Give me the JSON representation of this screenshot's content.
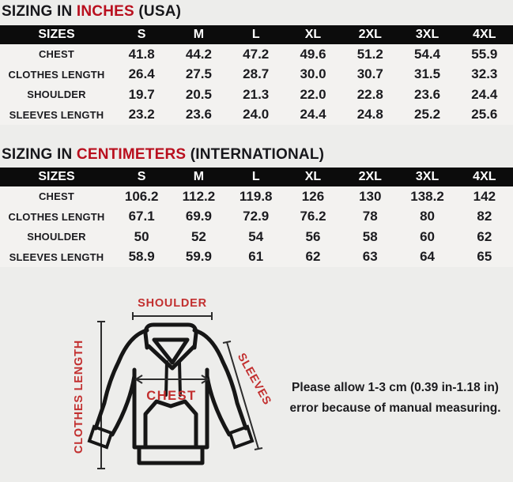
{
  "tables": [
    {
      "title_prefix": "SIZING IN ",
      "title_highlight": "INCHES",
      "title_suffix": " (USA)",
      "columns": [
        "SIZES",
        "S",
        "M",
        "L",
        "XL",
        "2XL",
        "3XL",
        "4XL"
      ],
      "rows": [
        {
          "label": "CHEST",
          "values": [
            "41.8",
            "44.2",
            "47.2",
            "49.6",
            "51.2",
            "54.4",
            "55.9"
          ]
        },
        {
          "label": "CLOTHES LENGTH",
          "values": [
            "26.4",
            "27.5",
            "28.7",
            "30.0",
            "30.7",
            "31.5",
            "32.3"
          ]
        },
        {
          "label": "SHOULDER",
          "values": [
            "19.7",
            "20.5",
            "21.3",
            "22.0",
            "22.8",
            "23.6",
            "24.4"
          ]
        },
        {
          "label": "SLEEVES LENGTH",
          "values": [
            "23.2",
            "23.6",
            "24.0",
            "24.4",
            "24.8",
            "25.2",
            "25.6"
          ]
        }
      ]
    },
    {
      "title_prefix": "SIZING IN ",
      "title_highlight": "CENTIMETERS",
      "title_suffix": " (INTERNATIONAL)",
      "columns": [
        "SIZES",
        "S",
        "M",
        "L",
        "XL",
        "2XL",
        "3XL",
        "4XL"
      ],
      "rows": [
        {
          "label": "CHEST",
          "values": [
            "106.2",
            "112.2",
            "119.8",
            "126",
            "130",
            "138.2",
            "142"
          ]
        },
        {
          "label": "CLOTHES LENGTH",
          "values": [
            "67.1",
            "69.9",
            "72.9",
            "76.2",
            "78",
            "80",
            "82"
          ]
        },
        {
          "label": "SHOULDER",
          "values": [
            "50",
            "52",
            "54",
            "56",
            "58",
            "60",
            "62"
          ]
        },
        {
          "label": "SLEEVES LENGTH",
          "values": [
            "58.9",
            "59.9",
            "61",
            "62",
            "63",
            "64",
            "65"
          ]
        }
      ]
    }
  ],
  "diagram": {
    "labels": {
      "shoulder": "SHOULDER",
      "clothes_length": "CLOTHES LENGTH",
      "chest": "CHEST",
      "sleeves": "SLEEVES"
    }
  },
  "note": {
    "line1": "Please allow 1-3 cm (0.39 in-1.18 in)",
    "line2": "error because of manual measuring."
  },
  "colors": {
    "accent_red": "#b90f1e",
    "diagram_red": "#c22f2f",
    "header_bar": "#0c0c0c",
    "background": "#ededeb"
  }
}
